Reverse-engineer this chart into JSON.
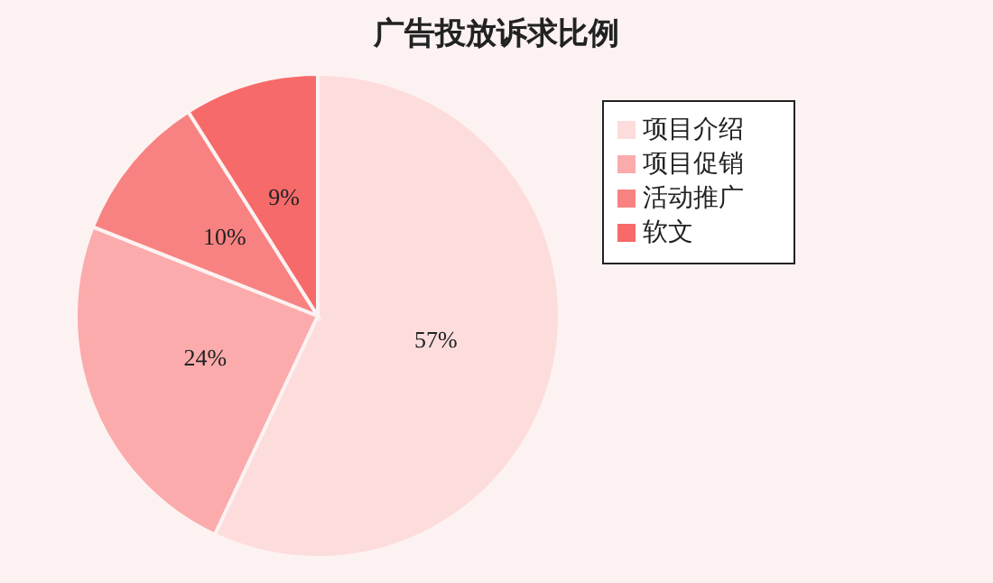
{
  "chart_data": {
    "type": "pie",
    "title": "广告投放诉求比例",
    "categories": [
      "项目介绍",
      "项目促销",
      "活动推广",
      "软文"
    ],
    "values": [
      57,
      24,
      10,
      9
    ],
    "value_labels": [
      "57%",
      "24%",
      "10%",
      "9%"
    ],
    "colors": [
      "#fddcdc",
      "#fbabab",
      "#f88282",
      "#f66a6a"
    ],
    "legend": "top right"
  }
}
